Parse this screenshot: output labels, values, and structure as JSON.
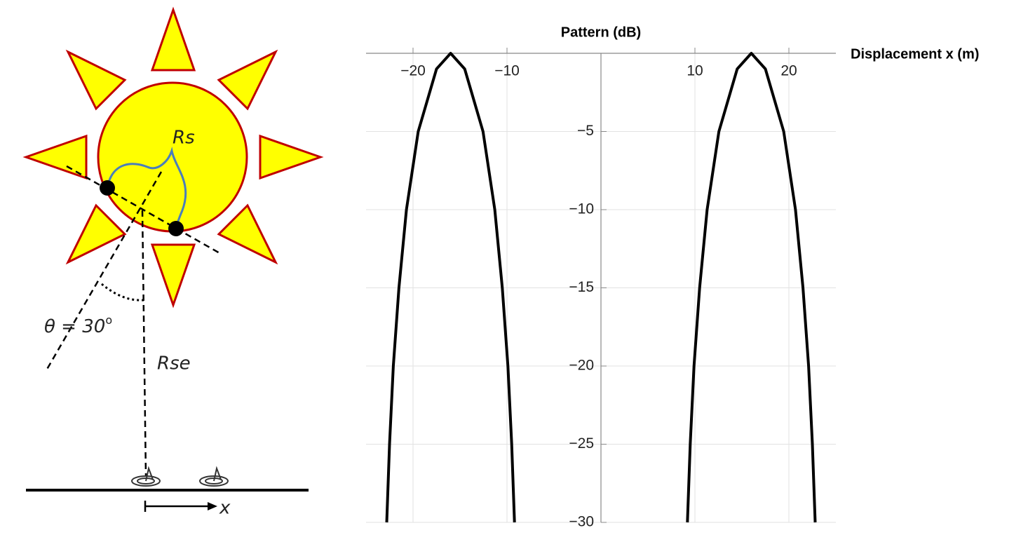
{
  "diagram": {
    "rs_label": "Rs",
    "angle_label": "θ = 30",
    "angle_unit": "o",
    "rse_label": "Rse",
    "x_label": "x"
  },
  "chart_data": {
    "type": "line",
    "y_label": "Pattern (dB)",
    "x_label": "Displacement x (m)",
    "xlim": [
      -25,
      25
    ],
    "ylim": [
      -30,
      0
    ],
    "xticks": [
      {
        "value": -20,
        "label": "−20"
      },
      {
        "value": -10,
        "label": "−10"
      },
      10,
      20
    ],
    "yticks": [
      {
        "value": -5,
        "label": "−5"
      },
      {
        "value": -10,
        "label": "−10"
      },
      {
        "value": -15,
        "label": "−15"
      },
      {
        "value": -20,
        "label": "−20"
      },
      {
        "value": -25,
        "label": "−25"
      },
      {
        "value": -30,
        "label": "−30"
      }
    ],
    "grid": true,
    "series": [
      {
        "color": "#000000",
        "x": [
          -22.8,
          -22.5,
          -22.1,
          -21.5,
          -20.7,
          -19.45,
          -17.5,
          -16,
          -14.5,
          -12.55,
          -11.3,
          -10.5,
          -9.9,
          -9.5,
          -9.2
        ],
        "values": [
          -30,
          -25,
          -20,
          -15,
          -10,
          -5,
          -1,
          0,
          -1,
          -5,
          -10,
          -15,
          -20,
          -25,
          -30
        ]
      },
      {
        "color": "#000000",
        "x": [
          9.2,
          9.5,
          9.9,
          10.5,
          11.3,
          12.55,
          14.5,
          16,
          17.5,
          19.45,
          20.7,
          21.5,
          22.1,
          22.5,
          22.8
        ],
        "values": [
          -30,
          -25,
          -20,
          -15,
          -10,
          -5,
          -1,
          0,
          -1,
          -5,
          -10,
          -15,
          -20,
          -25,
          -30
        ]
      }
    ]
  }
}
